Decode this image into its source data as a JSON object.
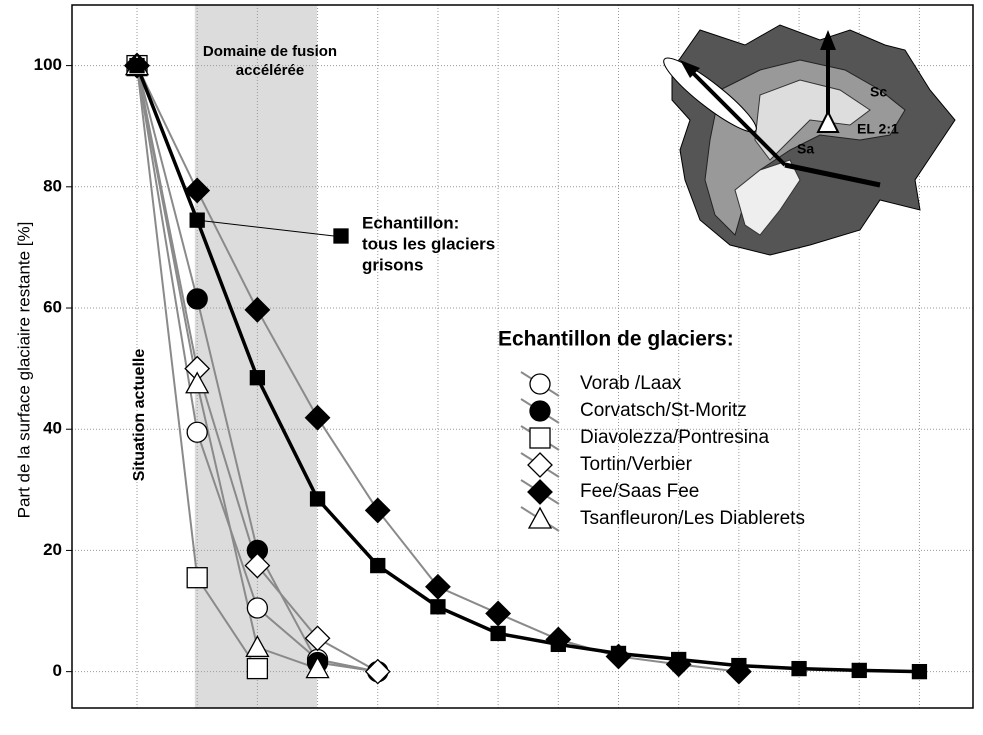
{
  "chart_data": {
    "type": "line",
    "y_label": "Part de la surface glaciaire restante [%]",
    "x": [
      0,
      1,
      2,
      3,
      4,
      5,
      6,
      7,
      8,
      9,
      10,
      11,
      12,
      13
    ],
    "xlim": [
      -1.08,
      13.89
    ],
    "ylim": [
      -6,
      110
    ],
    "yticks": [
      0,
      20,
      40,
      60,
      80,
      100
    ],
    "grid": true,
    "shaded_range": [
      0.96,
      2.99
    ],
    "shaded_label": [
      "Domaine de fusion",
      "accélérée"
    ],
    "vertical_label": "Situation actuelle",
    "legend_title": "Echantillon de glaciers:",
    "inset_labels": [
      "Sc",
      "EL 2:1",
      "Sa"
    ],
    "series": [
      {
        "name": "Vorab /Laax",
        "color": "#8a8a8a",
        "marker": "circle",
        "fill": "#ffffff",
        "values": [
          100,
          39.5,
          10.5,
          2,
          0,
          null,
          null,
          null,
          null,
          null,
          null,
          null,
          null,
          null
        ]
      },
      {
        "name": "Corvatsch/St-Moritz",
        "color": "#8a8a8a",
        "marker": "circle",
        "fill": "#000000",
        "values": [
          100,
          61.5,
          20,
          1.5,
          0,
          null,
          null,
          null,
          null,
          null,
          null,
          null,
          null,
          null
        ]
      },
      {
        "name": "Diavolezza/Pontresina",
        "color": "#8a8a8a",
        "marker": "square",
        "fill": "#ffffff",
        "values": [
          100,
          15.5,
          0.5,
          null,
          null,
          null,
          null,
          null,
          null,
          null,
          null,
          null,
          null,
          null
        ]
      },
      {
        "name": "Tortin/Verbier",
        "color": "#8a8a8a",
        "marker": "diamond",
        "fill": "#ffffff",
        "values": [
          100,
          50,
          17.5,
          5.5,
          0,
          null,
          null,
          null,
          null,
          null,
          null,
          null,
          null,
          null
        ]
      },
      {
        "name": "Fee/Saas Fee",
        "color": "#8a8a8a",
        "marker": "diamond",
        "fill": "#000000",
        "values": [
          100,
          79.4,
          59.7,
          41.9,
          26.6,
          14,
          9.6,
          5.3,
          2.5,
          1.2,
          0,
          null,
          null,
          null
        ]
      },
      {
        "name": "Tsanfleuron/Les Diablerets",
        "color": "#8a8a8a",
        "marker": "triangle",
        "fill": "#ffffff",
        "values": [
          100,
          47.5,
          4,
          0.5,
          null,
          null,
          null,
          null,
          null,
          null,
          null,
          null,
          null,
          null
        ]
      },
      {
        "name_lines": [
          "Echantillon:",
          "tous les glaciers",
          "grisons"
        ],
        "color": "#000000",
        "marker": "smallsquare",
        "fill": "#000000",
        "values": [
          100,
          74.5,
          48.5,
          28.5,
          17.5,
          10.7,
          6.3,
          4.5,
          3,
          2,
          1,
          0.5,
          0.2,
          0
        ]
      }
    ]
  }
}
